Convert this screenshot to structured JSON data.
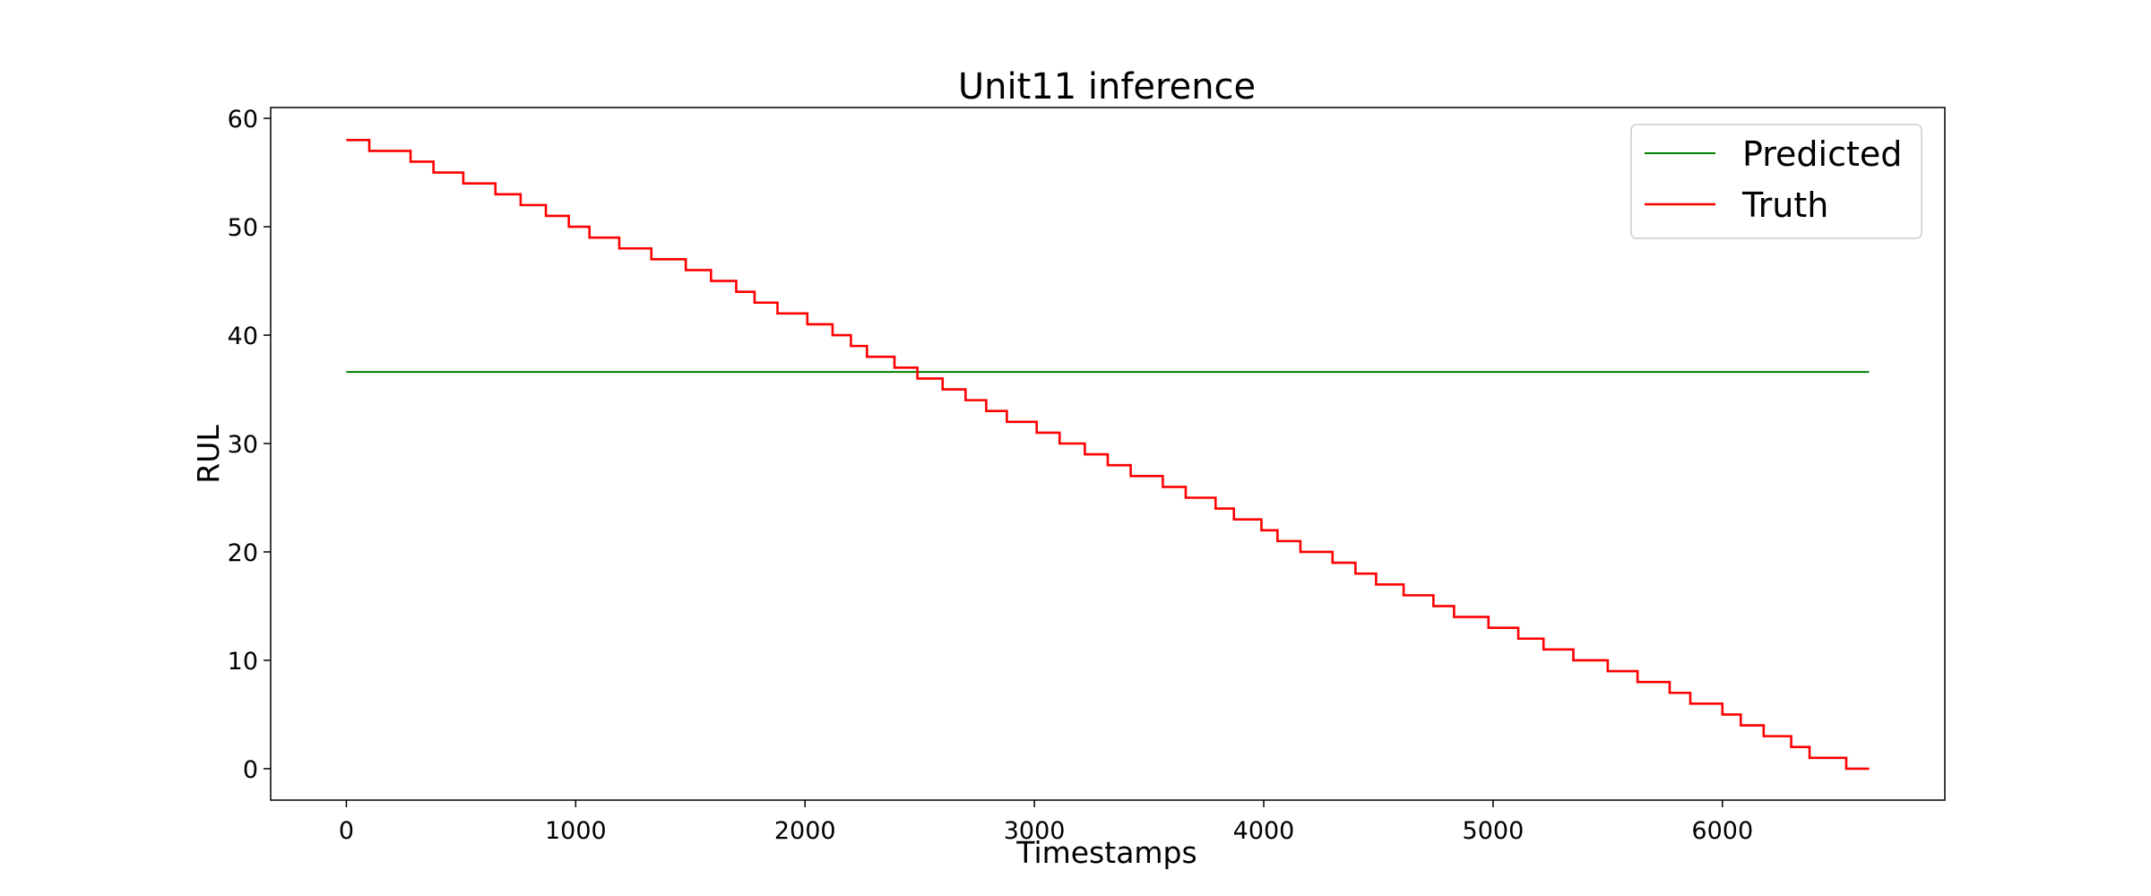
{
  "chart_data": {
    "type": "line",
    "title": "Unit11 inference",
    "xlabel": "Timestamps",
    "ylabel": "RUL",
    "xlim": [
      -330,
      6970
    ],
    "ylim": [
      -2.9,
      61
    ],
    "xticks": [
      0,
      1000,
      2000,
      3000,
      4000,
      5000,
      6000
    ],
    "yticks": [
      0,
      10,
      20,
      30,
      40,
      50,
      60
    ],
    "grid": false,
    "legend_position": "top-right",
    "series": [
      {
        "name": "Predicted",
        "color": "#008000",
        "x": [
          0,
          6640
        ],
        "y": [
          36.6,
          36.6
        ]
      },
      {
        "name": "Truth",
        "color": "#ff0000",
        "step": "post",
        "x": [
          0,
          100,
          280,
          380,
          510,
          650,
          760,
          870,
          970,
          1060,
          1190,
          1330,
          1480,
          1590,
          1700,
          1780,
          1880,
          2010,
          2120,
          2200,
          2270,
          2390,
          2490,
          2600,
          2700,
          2790,
          2880,
          3010,
          3110,
          3220,
          3320,
          3420,
          3560,
          3660,
          3790,
          3870,
          3990,
          4060,
          4160,
          4300,
          4400,
          4490,
          4610,
          4740,
          4830,
          4980,
          5110,
          5220,
          5350,
          5500,
          5630,
          5770,
          5860,
          6000,
          6080,
          6180,
          6300,
          6380,
          6540,
          6640
        ],
        "y": [
          58,
          57,
          56,
          55,
          54,
          53,
          52,
          51,
          50,
          49,
          48,
          47,
          46,
          45,
          44,
          43,
          42,
          41,
          40,
          39,
          38,
          37,
          36,
          35,
          34,
          33,
          32,
          31,
          30,
          29,
          28,
          27,
          26,
          25,
          24,
          23,
          22,
          21,
          20,
          19,
          18,
          17,
          16,
          15,
          14,
          13,
          12,
          11,
          10,
          9,
          8,
          7,
          6,
          5,
          4,
          3,
          2,
          1,
          0,
          0
        ]
      }
    ]
  }
}
